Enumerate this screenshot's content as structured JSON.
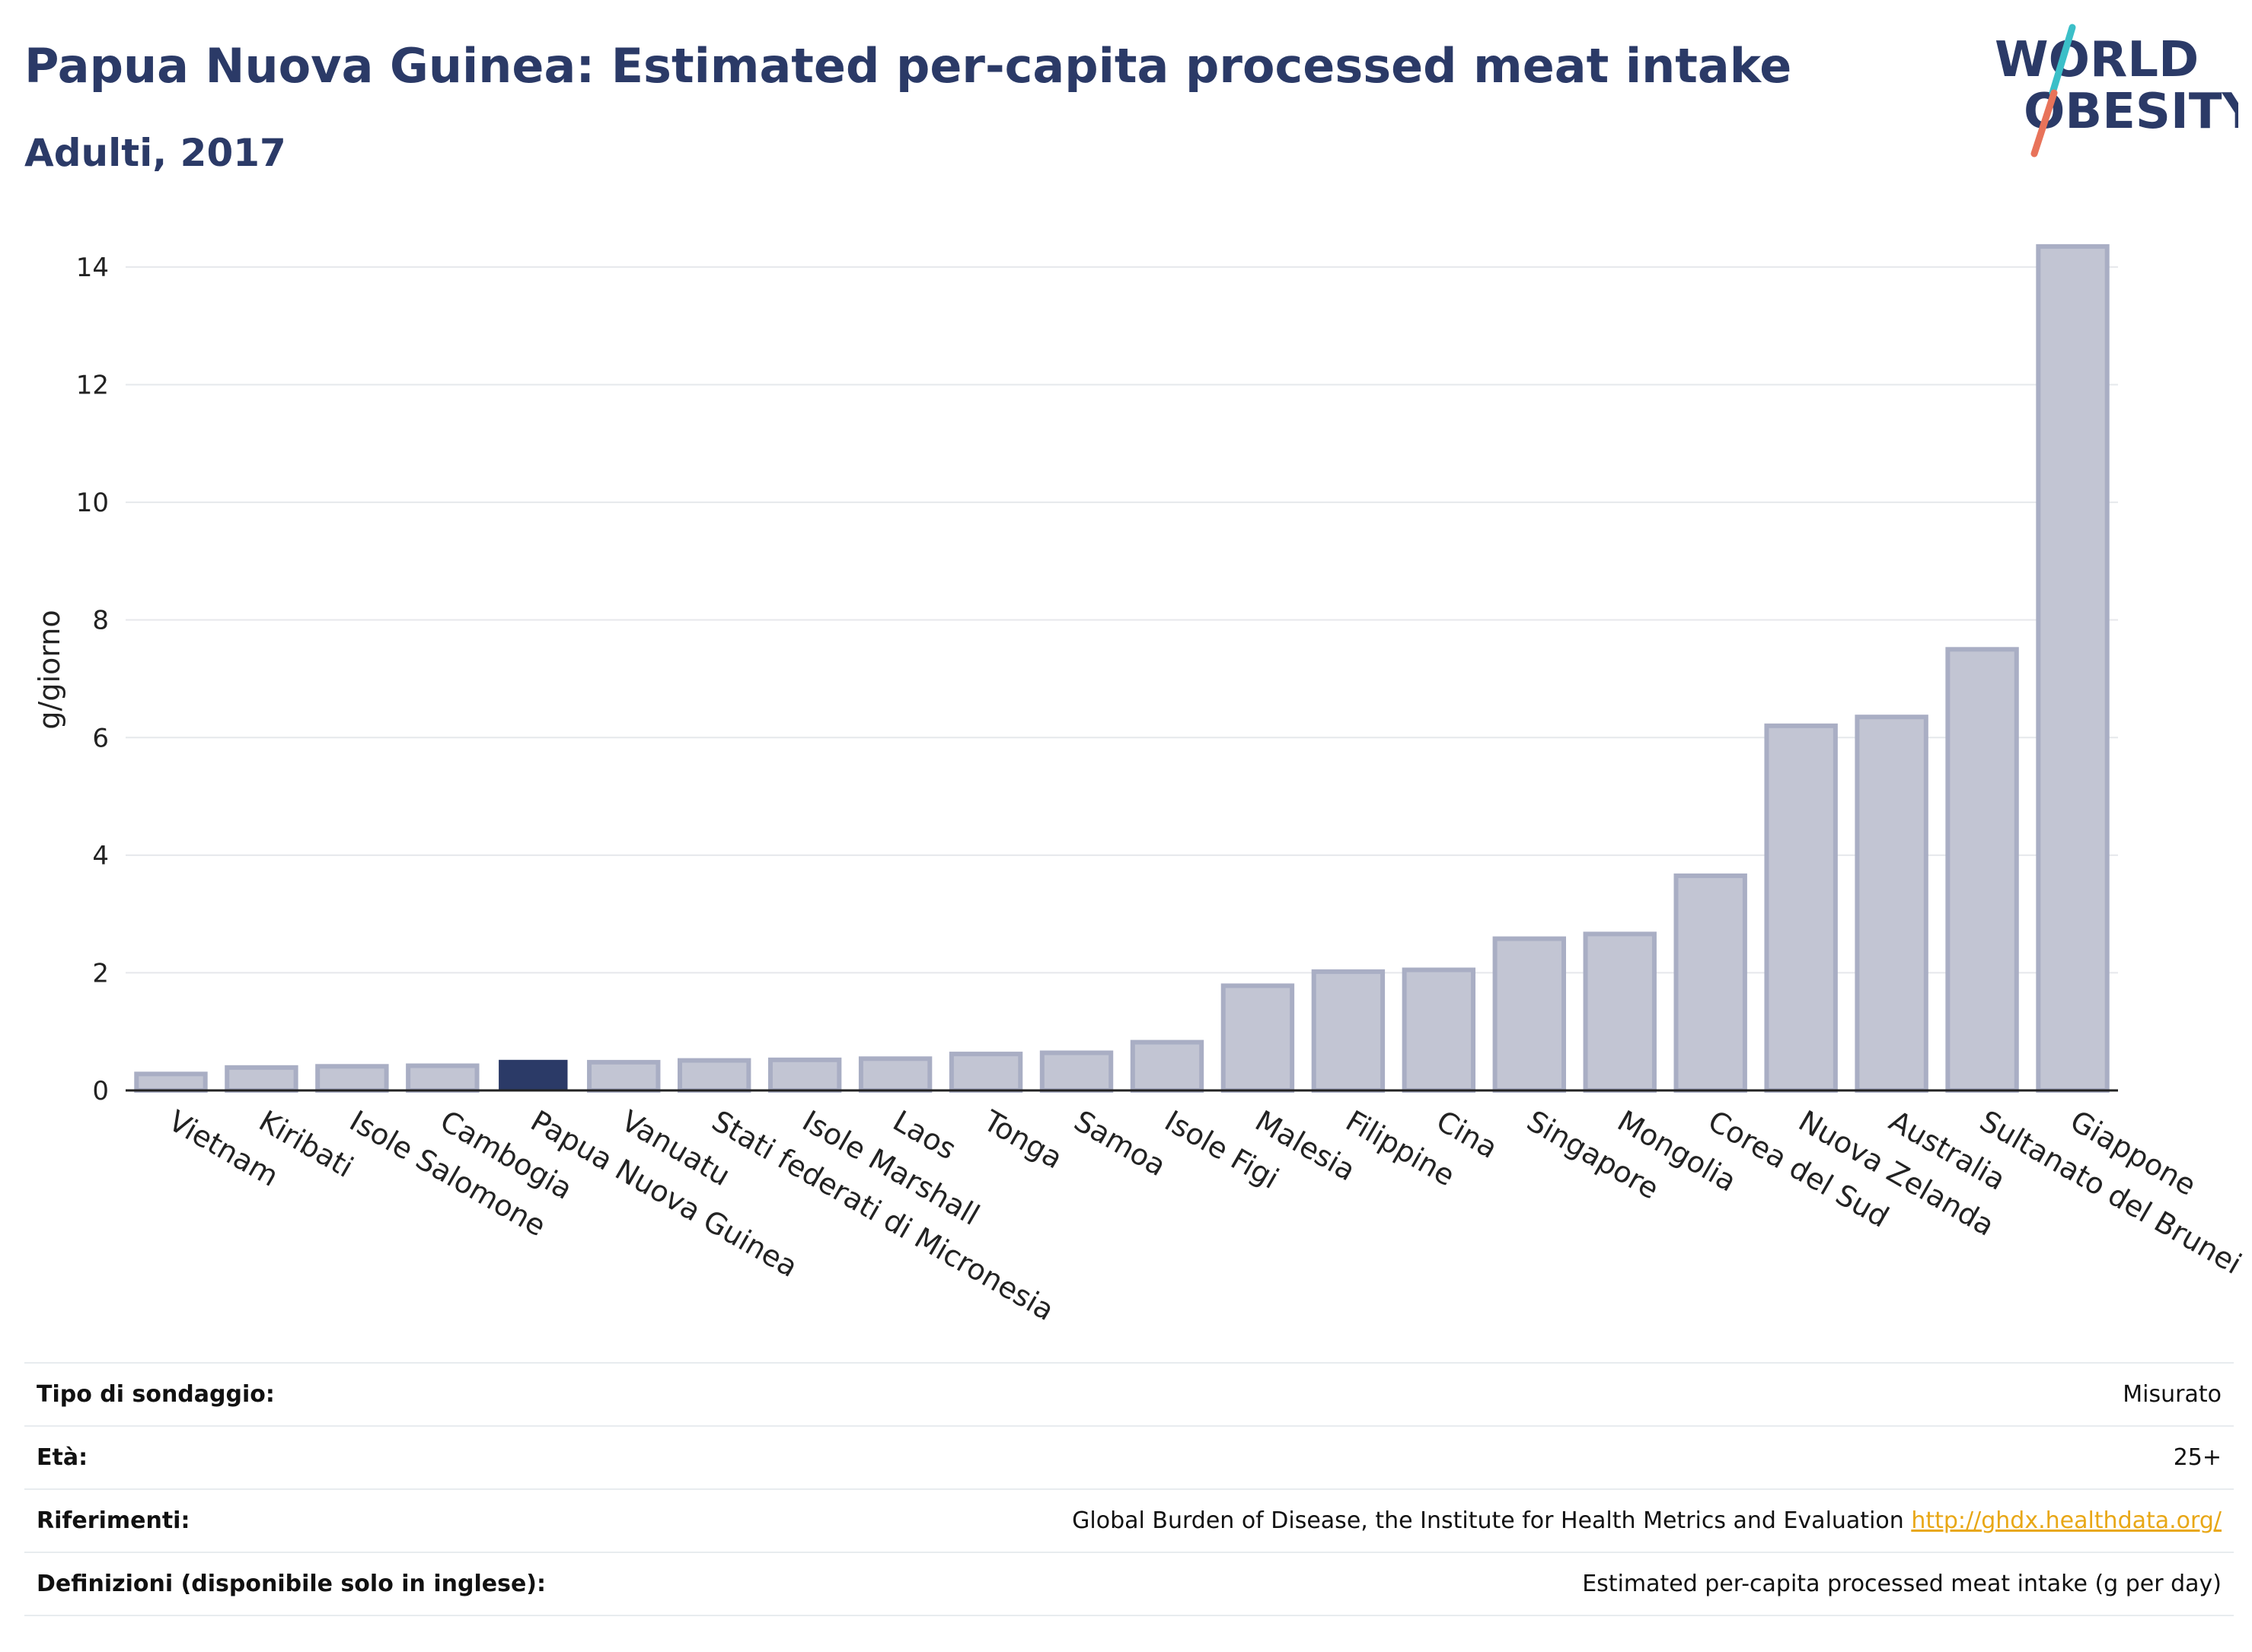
{
  "header": {
    "title": "Papua Nuova Guinea: Estimated per-capita processed meat intake",
    "subtitle": "Adulti, 2017"
  },
  "logo": {
    "line1": "WORLD",
    "line2": "OBESITY",
    "colors": {
      "text": "#2b3a67",
      "slash_top": "#3bbfc8",
      "slash_bottom": "#e8735a"
    }
  },
  "chart_data": {
    "type": "bar",
    "ylabel": "g/giorno",
    "xlabel": "",
    "ylim": [
      0,
      14.4
    ],
    "yticks": [
      0,
      2,
      4,
      6,
      8,
      10,
      12,
      14
    ],
    "grid": true,
    "highlight": "Papua Nuova Guinea",
    "colors": {
      "bar_fill": "#c2c5d3",
      "bar_stroke": "#a9aec4",
      "highlight": "#2b3a67",
      "grid": "#e6e8ec",
      "axis": "#222222"
    },
    "categories": [
      "Vietnam",
      "Kiribati",
      "Isole Salomone",
      "Cambogia",
      "Papua Nuova Guinea",
      "Vanuatu",
      "Stati federati di Micronesia",
      "Isole Marshall",
      "Laos",
      "Tonga",
      "Samoa",
      "Isole Figi",
      "Malesia",
      "Filippine",
      "Cina",
      "Singapore",
      "Mongolia",
      "Corea del Sud",
      "Nuova Zelanda",
      "Australia",
      "Sultanato del Brunei",
      "Giappone"
    ],
    "values": [
      0.28,
      0.39,
      0.41,
      0.42,
      0.52,
      0.48,
      0.51,
      0.52,
      0.54,
      0.62,
      0.64,
      0.82,
      1.78,
      2.02,
      2.05,
      2.58,
      2.66,
      3.65,
      6.2,
      6.35,
      7.5,
      14.35
    ]
  },
  "info": {
    "rows": [
      {
        "label": "Tipo di sondaggio:",
        "value": "Misurato"
      },
      {
        "label": "Età:",
        "value": "25+"
      },
      {
        "label": "Riferimenti:",
        "value": "Global Burden of Disease, the Institute for Health Metrics and Evaluation ",
        "link": "http://ghdx.healthdata.org/"
      },
      {
        "label": "Definizioni (disponibile solo in inglese):",
        "value": "Estimated per-capita processed meat intake (g per day)"
      }
    ]
  }
}
